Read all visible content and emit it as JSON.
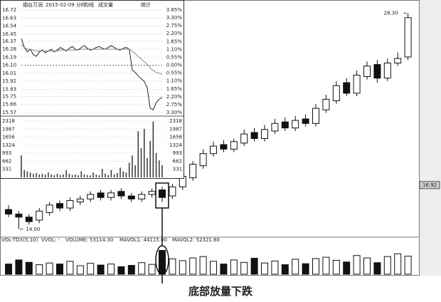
{
  "chart_data": [
    {
      "type": "candlestick",
      "ylim": [
        13.8,
        28.7
      ],
      "up_color": "#ffffff",
      "down_color": "#111111",
      "line_color": "#111111",
      "open": [
        15.3,
        15.0,
        14.8,
        14.6,
        15.1,
        15.7,
        15.4,
        15.8,
        16.0,
        16.4,
        16.1,
        16.5,
        16.2,
        16.0,
        16.3,
        16.6,
        16.2,
        16.8,
        17.4,
        18.2,
        19.0,
        19.6,
        19.3,
        19.7,
        20.4,
        20.0,
        20.5,
        21.1,
        20.7,
        21.3,
        21.0,
        21.9,
        22.5,
        23.7,
        23.0,
        24.1,
        24.9,
        24.0,
        25.0,
        25.4
      ],
      "high": [
        15.6,
        15.2,
        15.0,
        15.4,
        15.8,
        15.9,
        16.1,
        16.2,
        16.5,
        16.6,
        16.6,
        16.7,
        16.4,
        16.5,
        16.7,
        16.8,
        17.0,
        17.7,
        18.5,
        19.3,
        19.8,
        19.9,
        20.0,
        20.6,
        20.7,
        20.9,
        21.3,
        21.4,
        21.5,
        21.6,
        22.3,
        22.9,
        23.8,
        24.0,
        24.5,
        25.1,
        25.2,
        25.3,
        25.7,
        28.3
      ],
      "low": [
        14.8,
        14.0,
        14.3,
        14.4,
        14.9,
        15.2,
        15.2,
        15.6,
        15.8,
        15.9,
        15.9,
        16.0,
        15.8,
        15.8,
        16.1,
        15.8,
        16.0,
        16.6,
        17.2,
        18.0,
        18.8,
        19.1,
        19.1,
        19.5,
        19.8,
        19.8,
        20.3,
        20.5,
        20.5,
        20.8,
        20.8,
        21.7,
        22.3,
        22.8,
        22.8,
        23.9,
        23.7,
        23.8,
        24.8,
        25.2
      ],
      "close": [
        15.0,
        14.8,
        14.5,
        15.2,
        15.6,
        15.4,
        15.9,
        16.0,
        16.3,
        16.1,
        16.4,
        16.2,
        16.0,
        16.3,
        16.5,
        16.1,
        16.8,
        17.5,
        18.3,
        19.0,
        19.5,
        19.3,
        19.8,
        20.3,
        20.0,
        20.6,
        21.0,
        20.7,
        21.2,
        21.0,
        22.0,
        22.6,
        23.5,
        23.0,
        24.2,
        24.8,
        24.0,
        25.0,
        25.3,
        28.0
      ],
      "annotations": [
        {
          "text": "28.30",
          "value": 28.3
        },
        {
          "text": "14.00",
          "value": 14
        }
      ],
      "current_price": {
        "text": "16.92",
        "value": 16.92
      },
      "volume": {
        "header": [
          "VOL-TDX(5,10)",
          "VVOL: -",
          "VOLUME: 53114.30",
          "MAVOL1: 44115.00",
          "MAVOL2: 52321.80"
        ],
        "ylim": [
          0,
          90000
        ],
        "values": [
          30000,
          42000,
          35000,
          28000,
          33000,
          30000,
          38000,
          25000,
          32000,
          27000,
          30000,
          22000,
          26000,
          34000,
          29000,
          70000,
          45000,
          40000,
          48000,
          52000,
          38000,
          30000,
          42000,
          35000,
          47000,
          33000,
          39000,
          28000,
          44000,
          31000,
          46000,
          50000,
          41000,
          36000,
          55000,
          48000,
          34000,
          52000,
          60000,
          53114.3
        ]
      },
      "caption": "底部放量下跌"
    },
    {
      "type": "line",
      "header": [
        "烟台万润",
        "2015-02-09 分时",
        "均线",
        "成交量",
        "统计"
      ],
      "ylim": [
        15.57,
        16.72
      ],
      "yticks": [
        16.72,
        16.63,
        16.54,
        16.45,
        16.37,
        16.28,
        16.19,
        {
          "value": 16.1,
          "label": "16.10"
        },
        16.01,
        15.92,
        15.83,
        15.75,
        15.66,
        15.57
      ],
      "y2lim": [
        -3.3,
        3.85
      ],
      "y2ticks": [
        {
          "value": 3.85,
          "label": "3.85%"
        },
        {
          "value": 3.3,
          "label": "3.30%"
        },
        {
          "value": 2.75,
          "label": "2.75%"
        },
        {
          "value": 2.2,
          "label": "2.20%"
        },
        {
          "value": 1.65,
          "label": "1.65%"
        },
        {
          "value": 1.1,
          "label": "1.10%"
        },
        {
          "value": 0.55,
          "label": "0.55%"
        },
        {
          "value": 0,
          "label": "0.00%"
        },
        {
          "value": -0.55,
          "label": "0.55%"
        },
        {
          "value": -1.1,
          "label": "1.10%"
        },
        {
          "value": -1.65,
          "label": "1.65%"
        },
        {
          "value": -2.2,
          "label": "2.20%"
        },
        {
          "value": -2.75,
          "label": "2.75%"
        },
        {
          "value": -3.3,
          "label": "3.30%"
        }
      ],
      "price": {
        "color": "#222222",
        "values": [
          16.4,
          16.3,
          16.25,
          16.28,
          16.22,
          16.2,
          16.25,
          16.27,
          16.24,
          16.26,
          16.28,
          16.25,
          16.27,
          16.3,
          16.28,
          16.26,
          16.29,
          16.31,
          16.28,
          16.27,
          16.3,
          16.32,
          16.29,
          16.27,
          16.28,
          16.3,
          16.31,
          16.29,
          16.28,
          16.3,
          16.32,
          16.3,
          16.28,
          16.27,
          16.29,
          16.3,
          16.28,
          16.05,
          16.02,
          15.98,
          15.95,
          15.92,
          15.85,
          15.62,
          15.6,
          15.68,
          15.72,
          15.74
        ]
      },
      "average": {
        "color": "#888888",
        "values": [
          16.33,
          16.3,
          16.28,
          16.28,
          16.27,
          16.26,
          16.26,
          16.26,
          16.26,
          16.26,
          16.26,
          16.26,
          16.26,
          16.27,
          16.27,
          16.27,
          16.27,
          16.27,
          16.27,
          16.27,
          16.28,
          16.28,
          16.28,
          16.28,
          16.28,
          16.28,
          16.28,
          16.28,
          16.28,
          16.28,
          16.28,
          16.28,
          16.28,
          16.28,
          16.28,
          16.28,
          16.28,
          16.26,
          16.23,
          16.2,
          16.17,
          16.14,
          16.11,
          16.07,
          16.04,
          16.02,
          16.01,
          16.0
        ]
      },
      "volume": {
        "color": "#333333",
        "ylim": [
          0,
          2318
        ],
        "yticks": [
          2318,
          1987,
          1656,
          1324,
          993,
          662,
          331
        ],
        "values": [
          900,
          300,
          250,
          200,
          150,
          180,
          120,
          140,
          110,
          200,
          130,
          90,
          150,
          100,
          120,
          300,
          150,
          100,
          120,
          90,
          250,
          130,
          100,
          80,
          200,
          120,
          90,
          350,
          150,
          100,
          300,
          120,
          180,
          400,
          250,
          200,
          600,
          900,
          500,
          1900,
          1200,
          2000,
          800,
          1500,
          2300,
          1000,
          700,
          500
        ]
      }
    }
  ]
}
